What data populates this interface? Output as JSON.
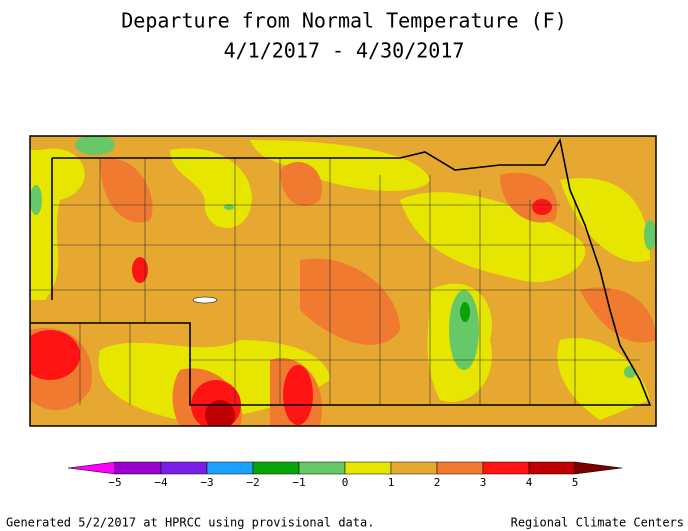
{
  "header": {
    "title": "Departure from Normal Temperature (F)",
    "subtitle": "4/1/2017 - 4/30/2017"
  },
  "legend": {
    "labels": [
      "−5",
      "−4",
      "−3",
      "−2",
      "−1",
      "0",
      "1",
      "2",
      "3",
      "4",
      "5"
    ],
    "colors": [
      "#9a00cc",
      "#7a1fe6",
      "#1ea0ff",
      "#0aa30a",
      "#66c866",
      "#e6e600",
      "#e6a830",
      "#f07a30",
      "#ff1414",
      "#c00000"
    ],
    "under_color": "#ff00ff",
    "over_color": "#7a0000"
  },
  "footer": {
    "left": "Generated 5/2/2017 at HPRCC using provisional data.",
    "right": "Regional Climate Centers"
  }
}
